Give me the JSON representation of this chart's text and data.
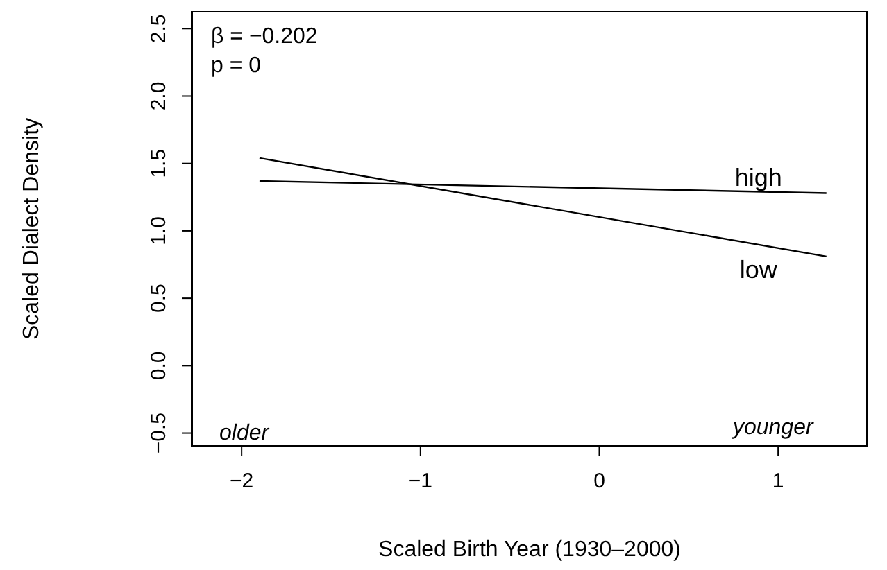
{
  "chart_data": {
    "type": "line",
    "xlabel": "Scaled Birth Year (1930–2000)",
    "ylabel": "Scaled Dialect Density",
    "series": [
      {
        "name": "high",
        "color": "#000000",
        "values": [
          1.37,
          1.28
        ]
      },
      {
        "name": "low",
        "color": "#000000",
        "values": [
          1.54,
          0.81
        ]
      }
    ],
    "x": [
      -1.9,
      1.27
    ],
    "xlim": [
      -2.28,
      1.5
    ],
    "xticks": [
      {
        "value": -2,
        "label": "−2"
      },
      {
        "value": -1,
        "label": "−1"
      },
      0,
      1
    ],
    "ylim": [
      -0.6,
      2.63
    ],
    "yticks": [
      {
        "value": -0.5,
        "label": "−0.5"
      },
      "0.0",
      0.5,
      "1.0",
      1.5,
      "2.0",
      2.5
    ],
    "annotations": [
      "β = −0.202",
      "p = 0",
      "older",
      "younger"
    ],
    "grid": false,
    "legend": false,
    "marker": "none",
    "line_style": "solid"
  }
}
